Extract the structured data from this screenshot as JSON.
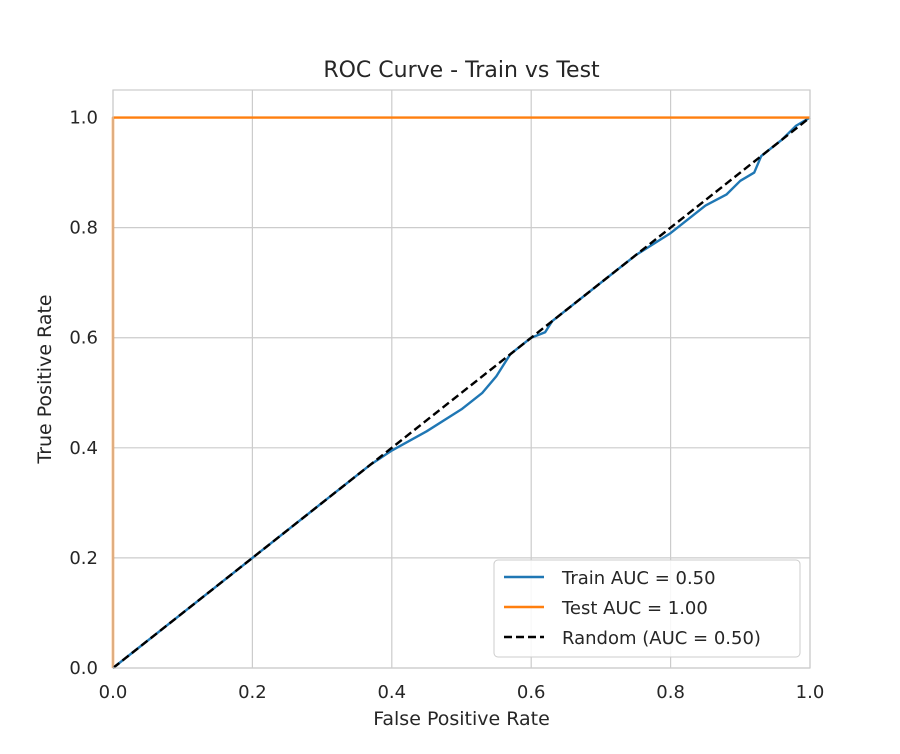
{
  "chart_data": {
    "type": "line",
    "title": "ROC Curve - Train vs Test",
    "xlabel": "False Positive Rate",
    "ylabel": "True Positive Rate",
    "xlim": [
      0.0,
      1.0
    ],
    "ylim": [
      0.0,
      1.05
    ],
    "xticks": [
      "0.0",
      "0.2",
      "0.4",
      "0.6",
      "0.8",
      "1.0"
    ],
    "yticks": [
      "0.0",
      "0.2",
      "0.4",
      "0.6",
      "0.8",
      "1.0"
    ],
    "grid": true,
    "legend_position": "lower-right",
    "series": [
      {
        "name": "Train AUC = 0.50",
        "color": "#1f77b4",
        "style": "solid",
        "x": [
          0.0,
          0.1,
          0.2,
          0.3,
          0.37,
          0.4,
          0.45,
          0.5,
          0.53,
          0.55,
          0.57,
          0.6,
          0.62,
          0.63,
          0.65,
          0.68,
          0.7,
          0.75,
          0.8,
          0.82,
          0.85,
          0.88,
          0.9,
          0.92,
          0.93,
          0.96,
          0.98,
          1.0
        ],
        "y": [
          0.0,
          0.1,
          0.2,
          0.3,
          0.37,
          0.395,
          0.43,
          0.47,
          0.5,
          0.53,
          0.57,
          0.6,
          0.61,
          0.63,
          0.65,
          0.68,
          0.7,
          0.75,
          0.79,
          0.81,
          0.84,
          0.86,
          0.885,
          0.9,
          0.93,
          0.96,
          0.985,
          1.0
        ]
      },
      {
        "name": "Test AUC = 1.00",
        "color": "#ff7f0e",
        "style": "solid",
        "x": [
          0.0,
          0.0,
          1.0
        ],
        "y": [
          0.0,
          1.0,
          1.0
        ]
      },
      {
        "name": "Random (AUC = 0.50)",
        "color": "#000000",
        "style": "dashed",
        "x": [
          0.0,
          1.0
        ],
        "y": [
          0.0,
          1.0
        ]
      }
    ]
  }
}
